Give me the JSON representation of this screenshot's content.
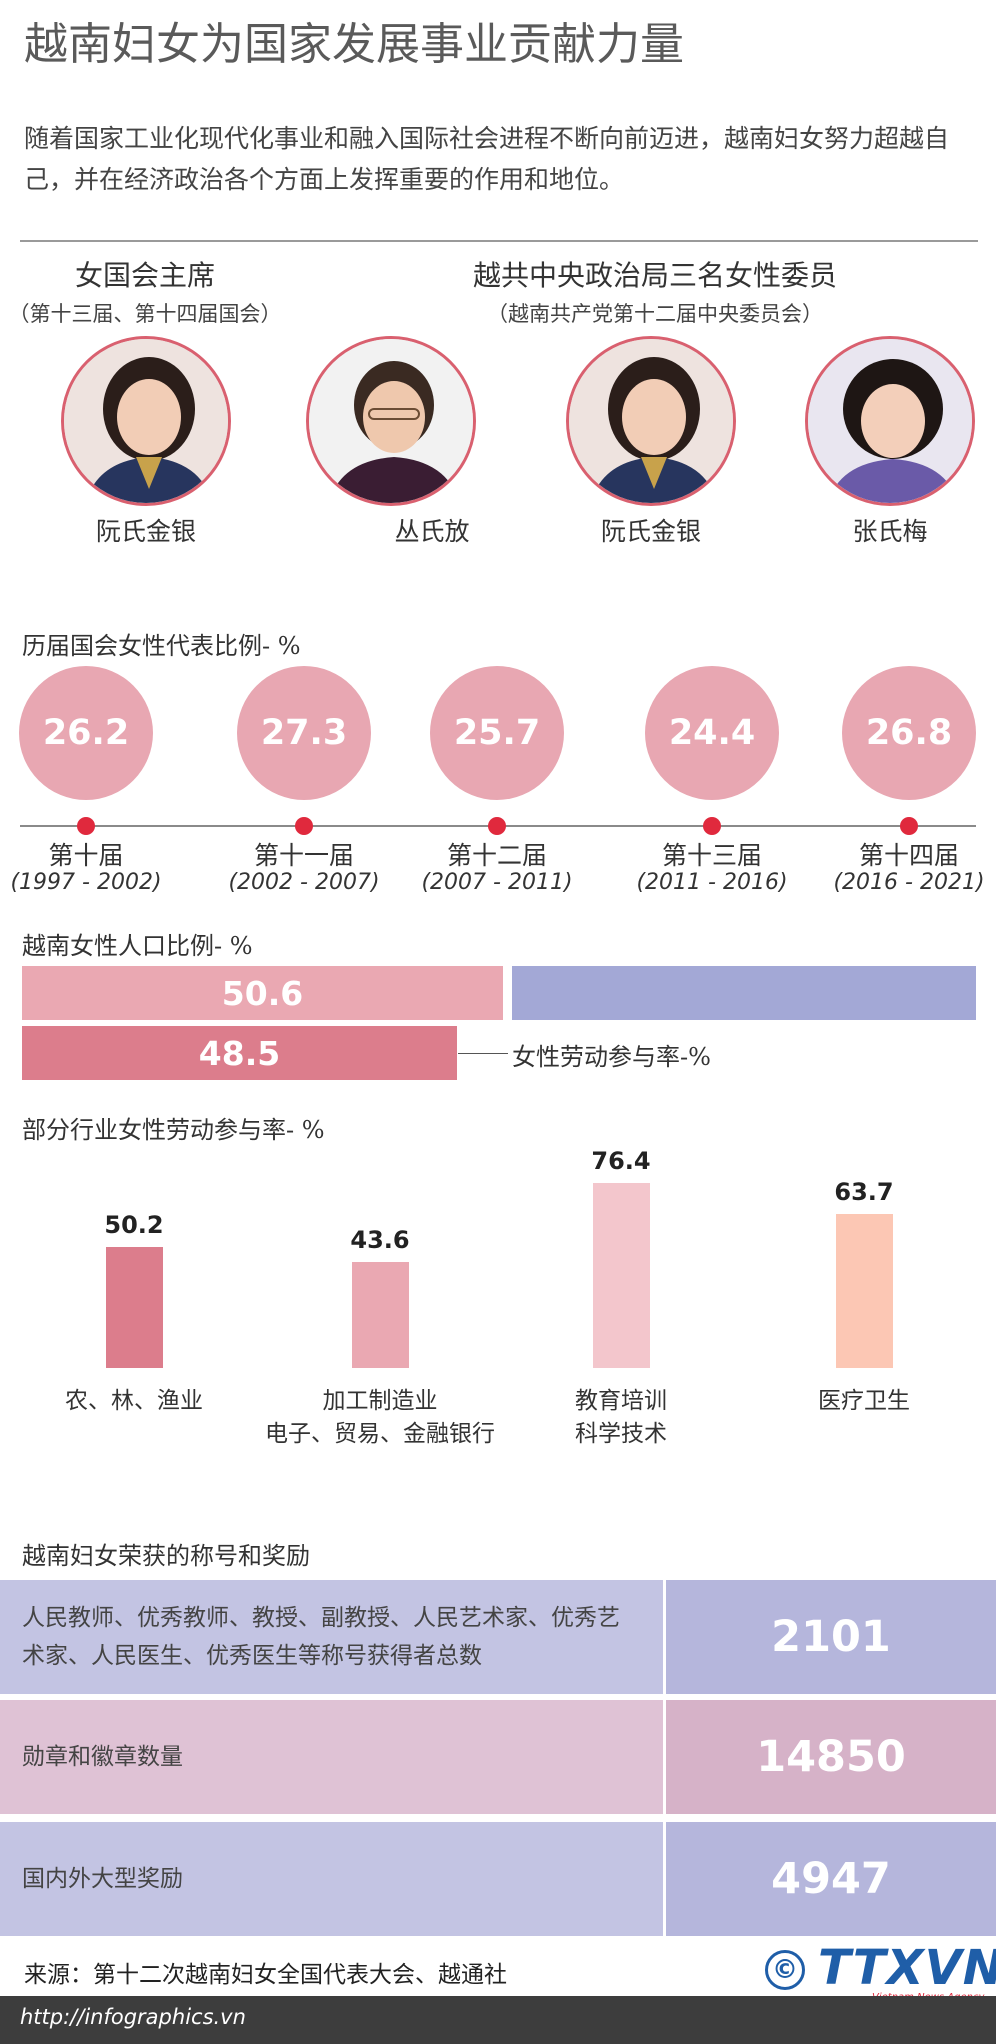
{
  "title": "越南妇女为国家发展事业贡献力量",
  "intro": "随着国家工业化现代化事业和融入国际社会进程不断向前迈进，越南妇女努力超越自己，并在经济政治各个方面上发挥重要的作用和地位。",
  "leaders": {
    "president_label": "女国会主席",
    "president_sub": "（第十三届、第十四届国会）",
    "politburo_label": "越共中央政治局三名女性委员",
    "politburo_sub": "（越南共产党第十二届中央委员会）",
    "people": [
      {
        "name": "阮氏金银"
      },
      {
        "name": "丛氏放"
      },
      {
        "name": "阮氏金银"
      },
      {
        "name": "张氏梅"
      }
    ]
  },
  "assembly": {
    "title": "历届国会女性代表比例- %",
    "terms": [
      {
        "value": "26.2",
        "term": "第十届",
        "years": "(1997 - 2002)"
      },
      {
        "value": "27.3",
        "term": "第十一届",
        "years": "(2002 - 2007)"
      },
      {
        "value": "25.7",
        "term": "第十二届",
        "years": "(2007 - 2011)"
      },
      {
        "value": "24.4",
        "term": "第十三届",
        "years": "(2011 - 2016)"
      },
      {
        "value": "26.8",
        "term": "第十四届",
        "years": "(2016 - 2021)"
      }
    ]
  },
  "population": {
    "title": "越南女性人口比例- %",
    "female_share": "50.6",
    "labor_rate": "48.5",
    "labor_label": "女性劳动参与率-%"
  },
  "chart_data": {
    "type": "bar",
    "title": "部分行业女性劳动参与率- %",
    "categories": [
      "农、林、渔业",
      "加工制造业\n电子、贸易、金融银行",
      "教育培训\n科学技术",
      "医疗卫生"
    ],
    "values": [
      50.2,
      43.6,
      76.4,
      63.7
    ],
    "colors": [
      "#dc7d8c",
      "#eaa8b2",
      "#f3c6cc",
      "#fcc7b4"
    ],
    "ylim": [
      0,
      80
    ]
  },
  "sector_labels": [
    [
      "农、林、渔业"
    ],
    [
      "加工制造业",
      "电子、贸易、金融银行"
    ],
    [
      "教育培训",
      "科学技术"
    ],
    [
      "医疗卫生"
    ]
  ],
  "awards": {
    "title": "越南妇女荣获的称号和奖励",
    "rows": [
      {
        "label": "人民教师、优秀教师、教授、副教授、人民艺术家、优秀艺术家、人民医生、优秀医生等称号获得者总数",
        "value": "2101"
      },
      {
        "label": "勋章和徽章数量",
        "value": "14850"
      },
      {
        "label": "国内外大型奖励",
        "value": "4947"
      }
    ]
  },
  "colors": {
    "accent_red": "#e0293d",
    "bubble_pink": "#e8a7b2",
    "row_blue": "#c3c4e3",
    "row_blue_dark": "#b5b6dc",
    "row_pink": "#dfc2d5",
    "row_pink_dark": "#d6b2c8",
    "logo_blue": "#1f5ea8"
  },
  "footer": {
    "source": "来源：第十二次越南妇女全国代表大会、越通社",
    "url": "http://infographics.vn",
    "logo": "TTXVN",
    "logo_sub": "Vietnam News Agency",
    "copyright_symbol": "©"
  }
}
